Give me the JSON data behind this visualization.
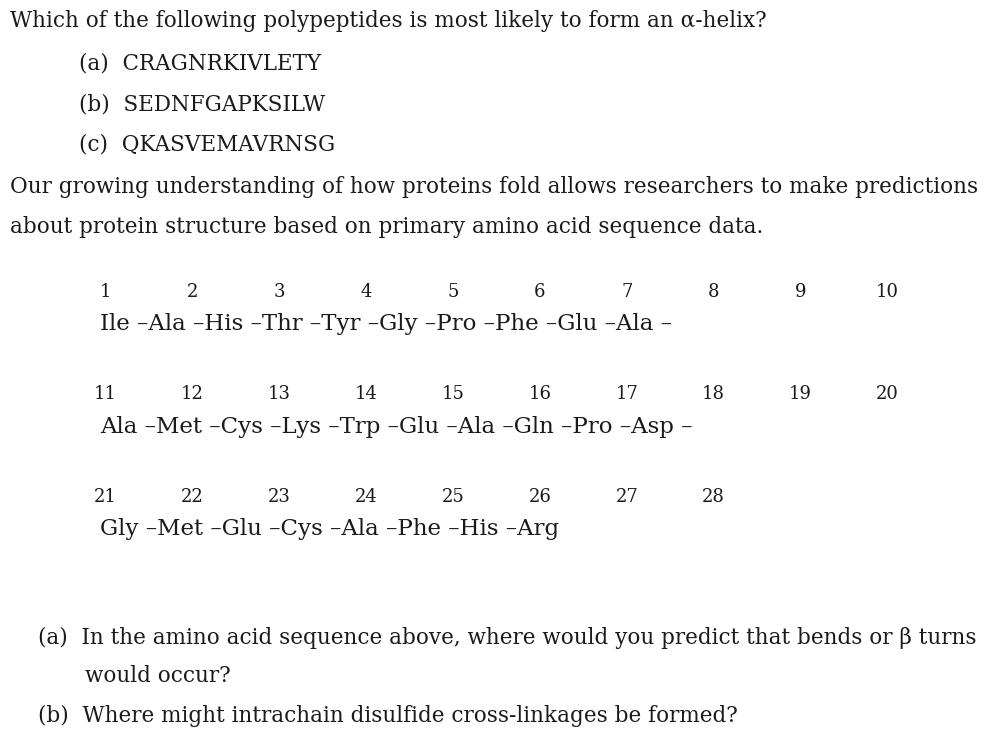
{
  "background_color": "#ffffff",
  "text_color": "#1a1a1a",
  "title_line": "Which of the following polypeptides is most likely to form an α-helix?",
  "opt_a": "(a)  CRAGNRKIVLETY",
  "opt_b": "(b)  SEDNFGAPKSILW",
  "opt_c": "(c)  QKASVEMAVRNSG",
  "intro1": "Our growing understanding of how proteins fold allows researchers to make predictions",
  "intro2": "about protein structure based on primary amino acid sequence data.",
  "row1_nums": [
    "1",
    "2",
    "3",
    "4",
    "5",
    "6",
    "7",
    "8",
    "9",
    "10"
  ],
  "row1_seq": "Ile –Ala –His –Thr –Tyr –Gly –Pro –Phe –Glu –Ala –",
  "row2_nums": [
    "11",
    "12",
    "13",
    "14",
    "15",
    "16",
    "17",
    "18",
    "19",
    "20"
  ],
  "row2_seq": "Ala –Met –Cys –Lys –Trp –Glu –Ala –Gln –Pro –Asp –",
  "row3_nums": [
    "21",
    "22",
    "23",
    "24",
    "25",
    "26",
    "27",
    "28"
  ],
  "row3_seq": "Gly –Met –Glu –Cys –Ala –Phe –His –Arg",
  "qa_line1": "(a)  In the amino acid sequence above, where would you predict that bends or β turns",
  "qa_line2": "       would occur?",
  "qb_line": "(b)  Where might intrachain disulfide cross-linkages be formed?",
  "font_main": 15.5,
  "font_seq_num": 13.0,
  "font_seq": 16.5
}
